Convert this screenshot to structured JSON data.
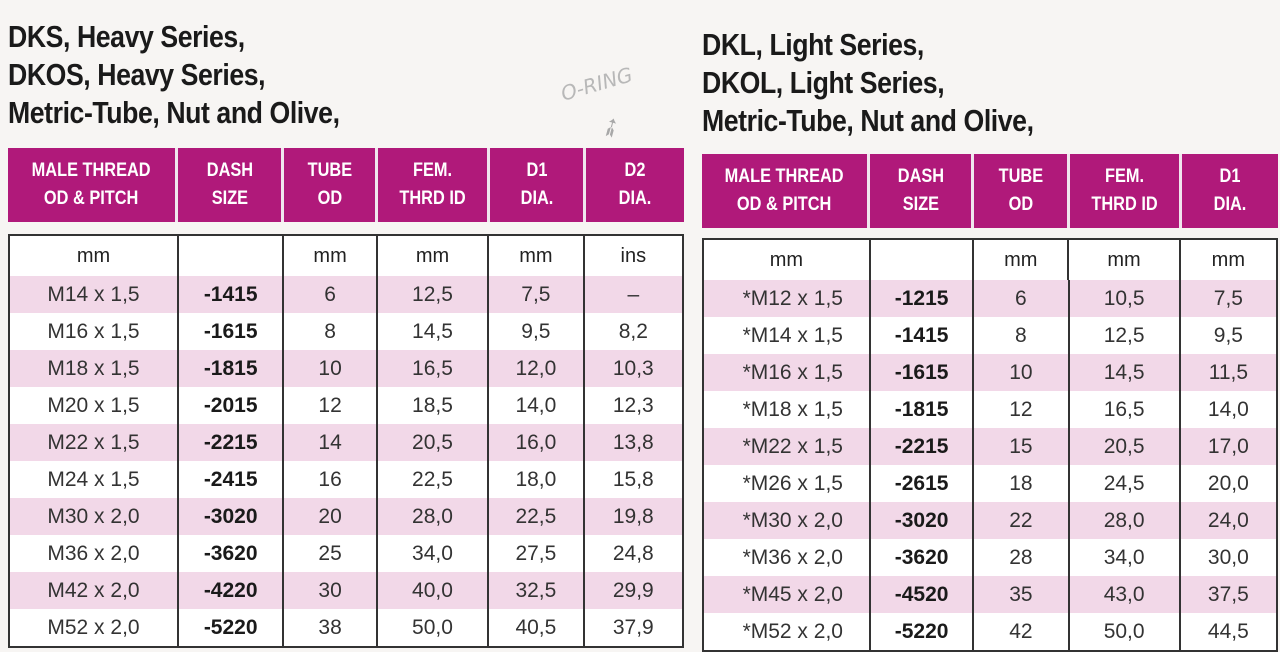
{
  "left": {
    "title_lines": [
      "DKS, Heavy Series,",
      "DKOS, Heavy Series,",
      "Metric-Tube, Nut and Olive,"
    ],
    "headers": [
      [
        "MALE THREAD",
        "OD & PITCH"
      ],
      [
        "DASH",
        "SIZE"
      ],
      [
        "TUBE",
        "OD"
      ],
      [
        "FEM.",
        "THRD ID"
      ],
      [
        "D1",
        "DIA."
      ],
      [
        "D2",
        "DIA."
      ]
    ],
    "units": [
      "mm",
      "",
      "mm",
      "mm",
      "mm",
      "ins"
    ],
    "rows": [
      [
        "M14 x 1,5",
        "-1415",
        "6",
        "12,5",
        "7,5",
        "–"
      ],
      [
        "M16 x 1,5",
        "-1615",
        "8",
        "14,5",
        "9,5",
        "8,2"
      ],
      [
        "M18 x 1,5",
        "-1815",
        "10",
        "16,5",
        "12,0",
        "10,3"
      ],
      [
        "M20 x 1,5",
        "-2015",
        "12",
        "18,5",
        "14,0",
        "12,3"
      ],
      [
        "M22 x 1,5",
        "-2215",
        "14",
        "20,5",
        "16,0",
        "13,8"
      ],
      [
        "M24 x 1,5",
        "-2415",
        "16",
        "22,5",
        "18,0",
        "15,8"
      ],
      [
        "M30 x 2,0",
        "-3020",
        "20",
        "28,0",
        "22,5",
        "19,8"
      ],
      [
        "M36 x 2,0",
        "-3620",
        "25",
        "34,0",
        "27,5",
        "24,8"
      ],
      [
        "M42 x 2,0",
        "-4220",
        "30",
        "40,0",
        "32,5",
        "29,9"
      ],
      [
        "M52 x 2,0",
        "-5220",
        "38",
        "50,0",
        "40,5",
        "37,9"
      ]
    ]
  },
  "right": {
    "title_lines": [
      "DKL, Light Series,",
      "DKOL, Light Series,",
      "Metric-Tube, Nut and Olive,"
    ],
    "headers": [
      [
        "MALE THREAD",
        "OD & PITCH"
      ],
      [
        "DASH",
        "SIZE"
      ],
      [
        "TUBE",
        "OD"
      ],
      [
        "FEM.",
        "THRD ID"
      ],
      [
        "D1",
        "DIA."
      ]
    ],
    "units": [
      "mm",
      "",
      "mm",
      "mm",
      "mm"
    ],
    "rows": [
      [
        "*M12 x 1,5",
        "-1215",
        "6",
        "10,5",
        "7,5"
      ],
      [
        "*M14 x 1,5",
        "-1415",
        "8",
        "12,5",
        "9,5"
      ],
      [
        "*M16 x 1,5",
        "-1615",
        "10",
        "14,5",
        "11,5"
      ],
      [
        "*M18 x 1,5",
        "-1815",
        "12",
        "16,5",
        "14,0"
      ],
      [
        "*M22 x 1,5",
        "-2215",
        "15",
        "20,5",
        "17,0"
      ],
      [
        "*M26 x 1,5",
        "-2615",
        "18",
        "24,5",
        "20,0"
      ],
      [
        "*M30 x 2,0",
        "-3020",
        "22",
        "28,0",
        "24,0"
      ],
      [
        "*M36 x 2,0",
        "-3620",
        "28",
        "34,0",
        "30,0"
      ],
      [
        "*M45 x 2,0",
        "-4520",
        "35",
        "43,0",
        "37,5"
      ],
      [
        "*M52 x 2,0",
        "-5220",
        "42",
        "50,0",
        "44,5"
      ]
    ]
  },
  "handwritten_note": "O-RING",
  "colors": {
    "header_bg": "#b0197a",
    "row_pink": "#f2d8e8"
  }
}
